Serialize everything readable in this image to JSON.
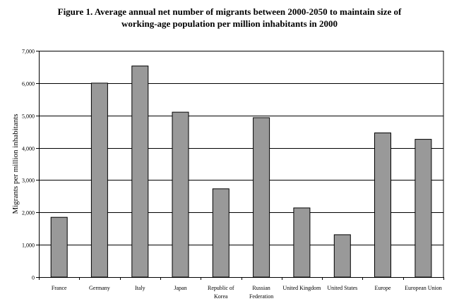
{
  "title_line1": "Figure 1.  Average annual net number of migrants between 2000-2050 to maintain size of",
  "title_line2": "working-age population per million inhabitants in 2000",
  "chart_data": {
    "type": "bar",
    "title": "Figure 1.  Average annual net number of migrants between 2000-2050 to maintain size of working-age population per million inhabitants in 2000",
    "xlabel": "",
    "ylabel": "Migrants per million inhabitants",
    "ylim": [
      0,
      7000
    ],
    "yticks": [
      0,
      1000,
      2000,
      3000,
      4000,
      5000,
      6000,
      7000
    ],
    "ytick_labels": [
      "0",
      "1,000",
      "2,000",
      "3,000",
      "4,000",
      "5,000",
      "6,000",
      "7,000"
    ],
    "categories": [
      "France",
      "Germany",
      "Italy",
      "Japan",
      "Republic of Korea",
      "Russian Federation",
      "United Kingdom",
      "United States",
      "Europe",
      "European Union"
    ],
    "category_label_lines": [
      [
        "France"
      ],
      [
        "Germany"
      ],
      [
        "Italy"
      ],
      [
        "Japan"
      ],
      [
        "Republic of",
        "Korea"
      ],
      [
        "Russian",
        "Federation"
      ],
      [
        "United Kingdom"
      ],
      [
        "United States"
      ],
      [
        "Europe"
      ],
      [
        "European Union"
      ]
    ],
    "values": [
      1850,
      6000,
      6530,
      5100,
      2730,
      4930,
      2140,
      1310,
      4460,
      4260
    ],
    "grid": true,
    "bar_color": "#999999"
  }
}
